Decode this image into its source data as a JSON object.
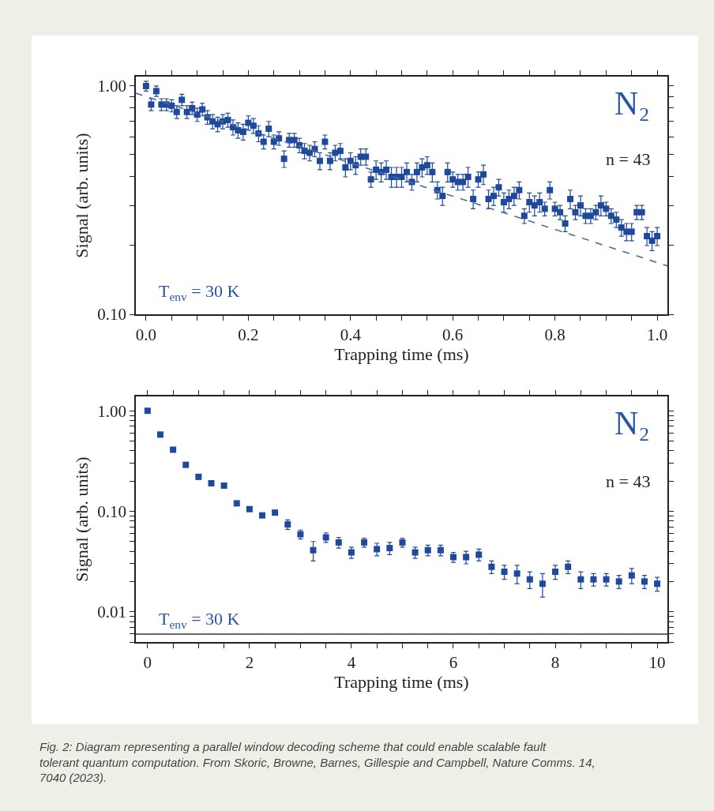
{
  "chart_data": [
    {
      "type": "scatter",
      "xlabel": "Trapping time (ms)",
      "ylabel": "Signal (arb. units)",
      "log": "y",
      "marker": "square",
      "xlim": [
        -0.02,
        1.02
      ],
      "ylim": [
        0.1,
        1.1
      ],
      "xticks": [
        {
          "value": 0,
          "label": "0.0"
        },
        {
          "value": 0.05,
          "label": null
        },
        {
          "value": 0.1,
          "label": null
        },
        {
          "value": 0.15,
          "label": null
        },
        0.2,
        {
          "value": 0.25,
          "label": null
        },
        {
          "value": 0.3,
          "label": null
        },
        {
          "value": 0.35,
          "label": null
        },
        0.4,
        {
          "value": 0.45,
          "label": null
        },
        {
          "value": 0.5,
          "label": null
        },
        {
          "value": 0.55,
          "label": null
        },
        0.6,
        {
          "value": 0.65,
          "label": null
        },
        {
          "value": 0.7,
          "label": null
        },
        {
          "value": 0.75,
          "label": null
        },
        0.8,
        {
          "value": 0.85,
          "label": null
        },
        {
          "value": 0.9,
          "label": null
        },
        {
          "value": 0.95,
          "label": null
        },
        {
          "value": 1,
          "label": "1.0"
        }
      ],
      "yticks": [
        {
          "value": 0.1,
          "label": "0.10"
        },
        {
          "value": 0.2,
          "label": null
        },
        {
          "value": 0.3,
          "label": null
        },
        {
          "value": 0.4,
          "label": null
        },
        {
          "value": 0.5,
          "label": null
        },
        {
          "value": 0.6,
          "label": null
        },
        {
          "value": 0.7,
          "label": null
        },
        {
          "value": 0.8,
          "label": null
        },
        {
          "value": 0.9,
          "label": null
        },
        {
          "value": 1,
          "label": "1.00"
        }
      ],
      "annotations": [
        "N₂",
        "n = 43",
        "T$_{env}$ = 30 K"
      ],
      "series": [
        {
          "color": "#1f4a9c",
          "x": [
            0,
            0.01,
            0.02,
            0.03,
            0.04,
            0.05,
            0.06,
            0.07,
            0.08,
            0.09,
            0.1,
            0.11,
            0.12,
            0.13,
            0.14,
            0.15,
            0.16,
            0.17,
            0.18,
            0.19,
            0.2,
            0.21,
            0.22,
            0.23,
            0.24,
            0.25,
            0.26,
            0.27,
            0.28,
            0.29,
            0.3,
            0.31,
            0.32,
            0.33,
            0.34,
            0.35,
            0.36,
            0.37,
            0.38,
            0.39,
            0.4,
            0.41,
            0.42,
            0.43,
            0.44,
            0.45,
            0.46,
            0.47,
            0.48,
            0.49,
            0.5,
            0.51,
            0.52,
            0.53,
            0.54,
            0.55,
            0.56,
            0.57,
            0.58,
            0.59,
            0.6,
            0.61,
            0.62,
            0.63,
            0.64,
            0.65,
            0.66,
            0.67,
            0.68,
            0.69,
            0.7,
            0.71,
            0.72,
            0.73,
            0.74,
            0.75,
            0.76,
            0.77,
            0.78,
            0.79,
            0.8,
            0.81,
            0.82,
            0.83,
            0.84,
            0.85,
            0.86,
            0.87,
            0.88,
            0.89,
            0.9,
            0.91,
            0.92,
            0.93,
            0.94,
            0.95,
            0.96,
            0.97,
            0.98,
            0.99,
            1.0
          ],
          "values": [
            1.0,
            0.83,
            0.95,
            0.83,
            0.83,
            0.82,
            0.77,
            0.87,
            0.77,
            0.8,
            0.75,
            0.79,
            0.73,
            0.7,
            0.68,
            0.7,
            0.71,
            0.66,
            0.64,
            0.63,
            0.69,
            0.67,
            0.62,
            0.57,
            0.65,
            0.57,
            0.59,
            0.48,
            0.58,
            0.58,
            0.55,
            0.52,
            0.51,
            0.53,
            0.47,
            0.57,
            0.47,
            0.51,
            0.52,
            0.44,
            0.47,
            0.45,
            0.49,
            0.49,
            0.39,
            0.43,
            0.42,
            0.43,
            0.4,
            0.4,
            0.4,
            0.42,
            0.38,
            0.42,
            0.44,
            0.45,
            0.42,
            0.35,
            0.33,
            0.42,
            0.39,
            0.38,
            0.38,
            0.4,
            0.32,
            0.39,
            0.41,
            0.32,
            0.33,
            0.36,
            0.31,
            0.32,
            0.33,
            0.35,
            0.27,
            0.31,
            0.3,
            0.31,
            0.29,
            0.35,
            0.29,
            0.28,
            0.25,
            0.32,
            0.28,
            0.3,
            0.27,
            0.27,
            0.28,
            0.3,
            0.29,
            0.27,
            0.26,
            0.24,
            0.23,
            0.23,
            0.28,
            0.28,
            0.22,
            0.21,
            0.22
          ],
          "errors": [
            0.05,
            0.05,
            0.05,
            0.05,
            0.05,
            0.05,
            0.05,
            0.05,
            0.05,
            0.05,
            0.05,
            0.05,
            0.05,
            0.05,
            0.05,
            0.05,
            0.05,
            0.05,
            0.05,
            0.05,
            0.05,
            0.05,
            0.05,
            0.04,
            0.05,
            0.04,
            0.04,
            0.04,
            0.04,
            0.04,
            0.04,
            0.04,
            0.04,
            0.04,
            0.04,
            0.04,
            0.04,
            0.04,
            0.04,
            0.04,
            0.04,
            0.04,
            0.04,
            0.04,
            0.03,
            0.04,
            0.04,
            0.04,
            0.04,
            0.04,
            0.04,
            0.04,
            0.03,
            0.04,
            0.04,
            0.04,
            0.04,
            0.03,
            0.03,
            0.04,
            0.03,
            0.03,
            0.03,
            0.04,
            0.03,
            0.03,
            0.04,
            0.03,
            0.03,
            0.03,
            0.03,
            0.03,
            0.03,
            0.03,
            0.02,
            0.03,
            0.03,
            0.03,
            0.02,
            0.03,
            0.02,
            0.02,
            0.02,
            0.03,
            0.02,
            0.03,
            0.02,
            0.02,
            0.02,
            0.03,
            0.02,
            0.02,
            0.02,
            0.02,
            0.02,
            0.02,
            0.02,
            0.02,
            0.02,
            0.02,
            0.02
          ]
        },
        {
          "type": "line",
          "marker": "none",
          "color": "#4a6db0",
          "line_style": "dashed",
          "x": [
            -0.02,
            1.02
          ],
          "values": [
            0.93,
            0.163
          ]
        }
      ]
    },
    {
      "type": "scatter",
      "xlabel": "Trapping time (ms)",
      "ylabel": "Signal (arb. units)",
      "log": "y",
      "marker": "square",
      "xlim": [
        -0.23,
        10.2
      ],
      "ylim": [
        0.005,
        1.39
      ],
      "xticks": [
        0,
        {
          "value": 0.5,
          "label": null
        },
        {
          "value": 1,
          "label": null
        },
        {
          "value": 1.5,
          "label": null
        },
        2,
        {
          "value": 2.5,
          "label": null
        },
        {
          "value": 3,
          "label": null
        },
        {
          "value": 3.5,
          "label": null
        },
        4,
        {
          "value": 4.5,
          "label": null
        },
        {
          "value": 5,
          "label": null
        },
        {
          "value": 5.5,
          "label": null
        },
        6,
        {
          "value": 6.5,
          "label": null
        },
        {
          "value": 7,
          "label": null
        },
        {
          "value": 7.5,
          "label": null
        },
        8,
        {
          "value": 8.5,
          "label": null
        },
        {
          "value": 9,
          "label": null
        },
        {
          "value": 9.5,
          "label": null
        },
        10
      ],
      "yticks": [
        {
          "value": 0.005,
          "label": null
        },
        {
          "value": 0.006,
          "label": null
        },
        {
          "value": 0.007,
          "label": null
        },
        {
          "value": 0.008,
          "label": null
        },
        {
          "value": 0.009,
          "label": null
        },
        0.01,
        {
          "value": 0.02,
          "label": null
        },
        {
          "value": 0.03,
          "label": null
        },
        {
          "value": 0.04,
          "label": null
        },
        {
          "value": 0.05,
          "label": null
        },
        {
          "value": 0.06,
          "label": null
        },
        {
          "value": 0.07,
          "label": null
        },
        {
          "value": 0.08,
          "label": null
        },
        {
          "value": 0.09,
          "label": null
        },
        {
          "value": 0.1,
          "label": "0.10"
        },
        {
          "value": 0.2,
          "label": null
        },
        {
          "value": 0.3,
          "label": null
        },
        {
          "value": 0.4,
          "label": null
        },
        {
          "value": 0.5,
          "label": null
        },
        {
          "value": 0.6,
          "label": null
        },
        {
          "value": 0.7,
          "label": null
        },
        {
          "value": 0.8,
          "label": null
        },
        {
          "value": 0.9,
          "label": null
        },
        {
          "value": 1,
          "label": "1.00"
        }
      ],
      "ref_lines": [
        {
          "axis": "y",
          "value": 0.006,
          "color": "#333333"
        }
      ],
      "annotations": [
        "N₂",
        "n = 43",
        "T$_{env}$ = 30 K",
        "Fig. 2: Diagram representing a parallel window decoding scheme that could enable scalable fault tolerant quantum computation. From Skoric, Browne, Barnes, Gillespie and Campbell, Nature Comms. 14, 7040 (2023)."
      ],
      "series": [
        {
          "color": "#1f4a9c",
          "x": [
            0,
            0.25,
            0.5,
            0.75,
            1,
            1.25,
            1.5,
            1.75,
            2,
            2.25,
            2.5,
            2.75,
            3,
            3.25,
            3.5,
            3.75,
            4,
            4.25,
            4.5,
            4.75,
            5,
            5.25,
            5.5,
            5.75,
            6,
            6.25,
            6.5,
            6.75,
            7,
            7.25,
            7.5,
            7.75,
            8,
            8.25,
            8.5,
            8.75,
            9,
            9.25,
            9.5,
            9.75,
            10
          ],
          "values": [
            1.0,
            0.58,
            0.41,
            0.29,
            0.22,
            0.19,
            0.18,
            0.12,
            0.105,
            0.091,
            0.097,
            0.074,
            0.059,
            0.041,
            0.055,
            0.049,
            0.039,
            0.049,
            0.042,
            0.043,
            0.049,
            0.039,
            0.041,
            0.041,
            0.035,
            0.035,
            0.037,
            0.028,
            0.025,
            0.024,
            0.021,
            0.019,
            0.025,
            0.028,
            0.021,
            0.021,
            0.021,
            0.02,
            0.023,
            0.02,
            0.019
          ],
          "errors": [
            null,
            null,
            null,
            null,
            null,
            null,
            null,
            null,
            null,
            null,
            null,
            0.008,
            0.006,
            0.009,
            0.006,
            0.006,
            0.005,
            0.005,
            0.006,
            0.006,
            0.005,
            0.005,
            0.005,
            0.005,
            0.004,
            0.005,
            0.005,
            0.004,
            0.004,
            0.005,
            0.004,
            0.005,
            0.004,
            0.004,
            0.004,
            0.003,
            0.003,
            0.003,
            0.004,
            0.003,
            0.003
          ]
        }
      ]
    }
  ]
}
